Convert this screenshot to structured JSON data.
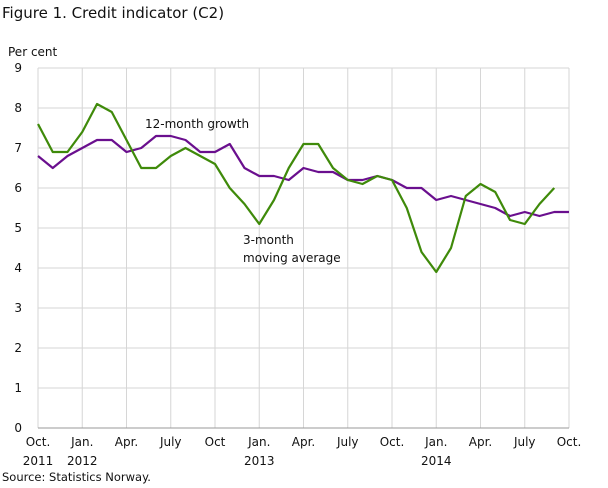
{
  "chart_data": {
    "type": "line",
    "title": "Figure 1. Credit indicator (C2)",
    "ylabel": "Per cent",
    "source": "Source: Statistics Norway.",
    "ylim": [
      0,
      9
    ],
    "yticks": [
      0,
      1,
      2,
      3,
      4,
      5,
      6,
      7,
      8,
      9
    ],
    "grid": true,
    "x_start": "2011-10",
    "x_end": "2014-10",
    "xticks": [
      {
        "month": 0,
        "line1": "Oct.",
        "line2": "2011"
      },
      {
        "month": 3,
        "line1": "Jan.",
        "line2": "2012"
      },
      {
        "month": 6,
        "line1": "Apr.",
        "line2": ""
      },
      {
        "month": 9,
        "line1": "July",
        "line2": ""
      },
      {
        "month": 12,
        "line1": "Oct",
        "line2": ""
      },
      {
        "month": 15,
        "line1": "Jan.",
        "line2": "2013"
      },
      {
        "month": 18,
        "line1": "Apr.",
        "line2": ""
      },
      {
        "month": 21,
        "line1": "July",
        "line2": ""
      },
      {
        "month": 24,
        "line1": "Oct.",
        "line2": ""
      },
      {
        "month": 27,
        "line1": "Jan.",
        "line2": "2014"
      },
      {
        "month": 30,
        "line1": "Apr.",
        "line2": ""
      },
      {
        "month": 33,
        "line1": "July",
        "line2": ""
      },
      {
        "month": 36,
        "line1": "Oct.",
        "line2": ""
      }
    ],
    "series": [
      {
        "name": "12-month growth",
        "color": "#6a0f8e",
        "values": [
          6.8,
          6.5,
          6.8,
          7.0,
          7.2,
          7.2,
          6.9,
          7.0,
          7.3,
          7.3,
          7.2,
          6.9,
          6.9,
          7.1,
          6.5,
          6.3,
          6.3,
          6.2,
          6.5,
          6.4,
          6.4,
          6.2,
          6.2,
          6.3,
          6.2,
          6.0,
          6.0,
          5.7,
          5.8,
          5.7,
          5.6,
          5.5,
          5.3,
          5.4,
          5.3,
          5.4,
          5.4
        ]
      },
      {
        "name": "3-month moving average",
        "name_line1": "3-month",
        "name_line2": "moving average",
        "color": "#3f8a0a",
        "values": [
          7.6,
          6.9,
          6.9,
          7.4,
          8.1,
          7.9,
          7.2,
          6.5,
          6.5,
          6.8,
          7.0,
          6.8,
          6.6,
          6.0,
          5.6,
          5.1,
          5.7,
          6.5,
          7.1,
          7.1,
          6.5,
          6.2,
          6.1,
          6.3,
          6.2,
          5.5,
          4.4,
          3.9,
          4.5,
          5.8,
          6.1,
          5.9,
          5.2,
          5.1,
          5.6,
          6.0
        ]
      }
    ]
  }
}
